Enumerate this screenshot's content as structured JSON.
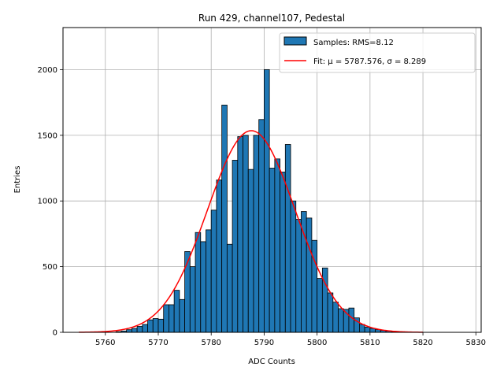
{
  "chart_data": {
    "type": "bar",
    "title": "Run 429, channel107, Pedestal",
    "xlabel": "ADC Counts",
    "ylabel": "Entries",
    "xlim": [
      5752,
      5831
    ],
    "ylim": [
      0,
      2320
    ],
    "xticks": [
      5760,
      5770,
      5780,
      5790,
      5800,
      5810,
      5820,
      5830
    ],
    "yticks": [
      0,
      500,
      1000,
      1500,
      2000
    ],
    "grid": true,
    "legend_position": "top-right",
    "histogram": {
      "name": "Samples: RMS=8.12",
      "color": "#1f77b4",
      "edge_color": "#000000",
      "bin_start": 5762.0,
      "bin_width": 1.0,
      "values": [
        5,
        10,
        20,
        30,
        45,
        60,
        95,
        105,
        100,
        210,
        210,
        320,
        250,
        615,
        500,
        760,
        690,
        780,
        930,
        1160,
        1730,
        670,
        1310,
        1490,
        1500,
        1240,
        1500,
        1620,
        2000,
        1250,
        1320,
        1220,
        1430,
        1000,
        860,
        920,
        870,
        700,
        410,
        490,
        300,
        230,
        180,
        175,
        185,
        110,
        60,
        40,
        30,
        20,
        15,
        10,
        5,
        2
      ]
    },
    "fit": {
      "name": "Fit: μ = 5787.576, σ = 8.289",
      "color": "#ff0000",
      "mu": 5787.576,
      "sigma": 8.289,
      "amplitude": 1535,
      "x_range": [
        5755,
        5820
      ]
    }
  }
}
